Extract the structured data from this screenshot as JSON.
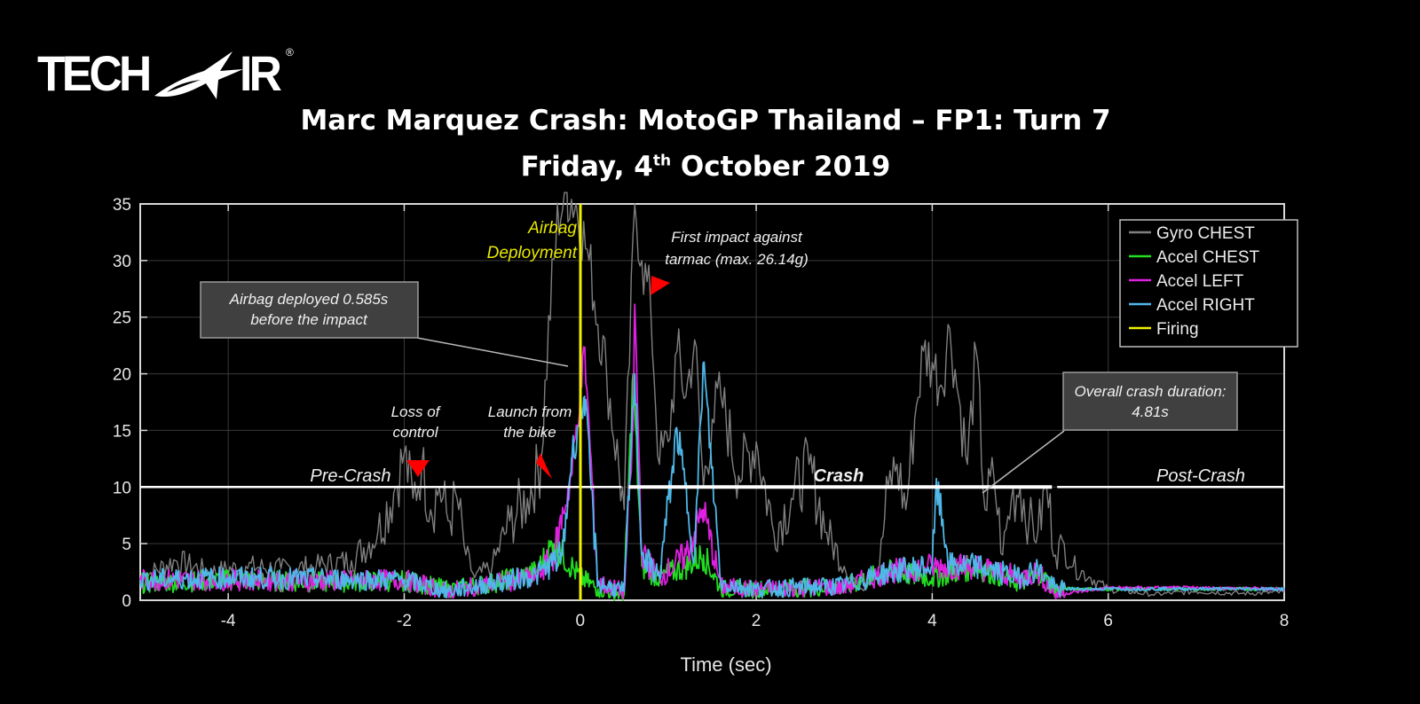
{
  "logo": {
    "text_left": "TECH",
    "text_right": "IR",
    "registered": "®"
  },
  "header": {
    "title": "Marc Marquez Crash: MotoGP Thailand – FP1: Turn 7",
    "subtitle_pre": "Friday, 4",
    "subtitle_sup": "th",
    "subtitle_post": " October 2019"
  },
  "colors": {
    "background": "#000000",
    "gyro_chest": "#7f7f7f",
    "accel_chest": "#22dd22",
    "accel_left": "#e020e0",
    "accel_right": "#4fb8e8",
    "firing": "#f0f000",
    "marker": "#ff0000",
    "annotation_box": "#404040"
  },
  "annotations": {
    "airbag_deployment_line1": "Airbag",
    "airbag_deployment_line2": "Deployment",
    "deployed_box_line1": "Airbag deployed 0.585s",
    "deployed_box_line2": "before the impact",
    "first_impact_line1": "First impact against",
    "first_impact_line2": "tarmac (max. 26.14g)",
    "loss_line1": "Loss of",
    "loss_line2": "control",
    "launch_line1": "Launch from",
    "launch_line2": "the bike",
    "duration_line1": "Overall crash duration:",
    "duration_line2": "4.81s",
    "pre_crash": "Pre-Crash",
    "crash": "Crash",
    "post_crash": "Post-Crash"
  },
  "chart_data": {
    "type": "line",
    "title": "Marc Marquez Crash: MotoGP Thailand – FP1: Turn 7",
    "subtitle": "Friday, 4th October 2019",
    "xlabel": "Time (sec)",
    "ylabel": "",
    "xlim": [
      -5,
      8
    ],
    "ylim": [
      0,
      35
    ],
    "xticks": [
      "-4",
      "-2",
      "0",
      "2",
      "4",
      "6",
      "8"
    ],
    "yticks": [
      "0",
      "5",
      "10",
      "15",
      "20",
      "25",
      "30",
      "35"
    ],
    "grid": true,
    "legend_position": "top-right",
    "legend": [
      "Gyro CHEST",
      "Accel CHEST",
      "Accel LEFT",
      "Accel RIGHT",
      "Firing"
    ],
    "series": [
      {
        "name": "Gyro CHEST",
        "x": [
          -5,
          -4.6,
          -4.2,
          -3.8,
          -3.4,
          -3.0,
          -2.6,
          -2.3,
          -2.1,
          -2.0,
          -1.9,
          -1.8,
          -1.7,
          -1.6,
          -1.5,
          -1.4,
          -1.3,
          -1.2,
          -1.0,
          -0.8,
          -0.6,
          -0.45,
          -0.35,
          -0.25,
          -0.15,
          -0.05,
          0.1,
          0.3,
          0.5,
          0.62,
          0.7,
          0.8,
          0.9,
          1.0,
          1.1,
          1.2,
          1.3,
          1.4,
          1.5,
          1.6,
          1.8,
          2.0,
          2.2,
          2.4,
          2.6,
          2.8,
          3.0,
          3.2,
          3.4,
          3.5,
          3.6,
          3.7,
          3.8,
          3.9,
          4.0,
          4.1,
          4.2,
          4.3,
          4.4,
          4.5,
          4.6,
          4.7,
          4.8,
          4.9,
          5.0,
          5.1,
          5.2,
          5.3,
          5.4,
          5.5,
          5.6,
          5.8,
          6.0,
          6.5,
          7.0,
          7.5,
          8.0
        ],
        "values": [
          2,
          3.5,
          2.5,
          3,
          2.8,
          3,
          3.5,
          6,
          10,
          13,
          9,
          12,
          8,
          10,
          7,
          9,
          4,
          2,
          3,
          7,
          9,
          12,
          25,
          34,
          36,
          35,
          30,
          20,
          8,
          35,
          30,
          26,
          12,
          14,
          22,
          18,
          23,
          10,
          16,
          18,
          11,
          14,
          6,
          9,
          12,
          6,
          3,
          1,
          3,
          10,
          12,
          8,
          16,
          22,
          21,
          19,
          24,
          18,
          12,
          22,
          8,
          11,
          4,
          9,
          10,
          7,
          6,
          10,
          4,
          5,
          3,
          2,
          1,
          0.5,
          0.8,
          0.6,
          0.7
        ]
      },
      {
        "name": "Accel CHEST",
        "x": [
          -5,
          -4,
          -3,
          -2,
          -1.5,
          -1,
          -0.5,
          -0.3,
          -0.1,
          0,
          0.2,
          0.5,
          0.6,
          0.7,
          0.9,
          1.2,
          1.4,
          1.6,
          2,
          3,
          3.5,
          4,
          4.5,
          5,
          5.2,
          5.4,
          6,
          7,
          8
        ],
        "values": [
          1.5,
          1.8,
          1.6,
          1.7,
          1,
          1.5,
          2.5,
          5,
          3,
          2,
          1,
          0.5,
          20,
          3,
          2,
          3,
          4,
          1,
          1,
          1.2,
          2.5,
          2,
          3,
          1.5,
          2.5,
          1,
          1,
          1,
          1
        ]
      },
      {
        "name": "Accel LEFT",
        "x": [
          -5,
          -4,
          -3,
          -2,
          -1.5,
          -1,
          -0.5,
          -0.3,
          -0.1,
          0.05,
          0.2,
          0.5,
          0.6,
          0.62,
          0.7,
          0.9,
          1.2,
          1.4,
          1.6,
          2,
          3,
          3.5,
          4,
          4.5,
          5,
          5.2,
          5.4,
          6,
          7,
          8
        ],
        "values": [
          1.8,
          1.8,
          1.7,
          1.8,
          0.8,
          1.5,
          2,
          4,
          11,
          22,
          1.5,
          0.8,
          15,
          26.14,
          4,
          2,
          4,
          8,
          1.2,
          1,
          1.2,
          2.5,
          3,
          3,
          2,
          2.5,
          0.5,
          1.1,
          1.1,
          1
        ]
      },
      {
        "name": "Accel RIGHT",
        "x": [
          -5,
          -4,
          -3,
          -2,
          -1.5,
          -1,
          -0.5,
          -0.2,
          -0.1,
          0.05,
          0.2,
          0.5,
          0.62,
          0.7,
          0.9,
          1.1,
          1.3,
          1.4,
          1.6,
          2,
          3,
          3.5,
          4,
          4.05,
          4.2,
          4.5,
          5,
          5.2,
          5.4,
          6,
          7,
          8
        ],
        "values": [
          1.8,
          2,
          1.9,
          1.8,
          0.8,
          1.5,
          2.2,
          4,
          12.5,
          18,
          1.5,
          0.8,
          20,
          4,
          2,
          15,
          4,
          21,
          1.5,
          1,
          1.3,
          2.5,
          3,
          10,
          3,
          3,
          2,
          2.8,
          1,
          1,
          1,
          1
        ]
      },
      {
        "name": "Firing",
        "x": [
          0,
          0
        ],
        "values": [
          0,
          35
        ]
      }
    ],
    "markers": [
      {
        "label": "Loss of control",
        "x": -1.9,
        "y": 12
      },
      {
        "label": "Launch from the bike",
        "x": -0.4,
        "y": 12
      },
      {
        "label": "First impact against tarmac (max. 26.14g)",
        "x": 0.75,
        "y": 28
      }
    ],
    "phases": [
      {
        "label": "Pre-Crash",
        "x_start": -5,
        "x_end": 0.47,
        "y": 10
      },
      {
        "label": "Crash",
        "x_start": 0.55,
        "x_end": 5.36,
        "y": 10
      },
      {
        "label": "Post-Crash",
        "x_start": 5.42,
        "x_end": 8,
        "y": 10
      }
    ]
  }
}
